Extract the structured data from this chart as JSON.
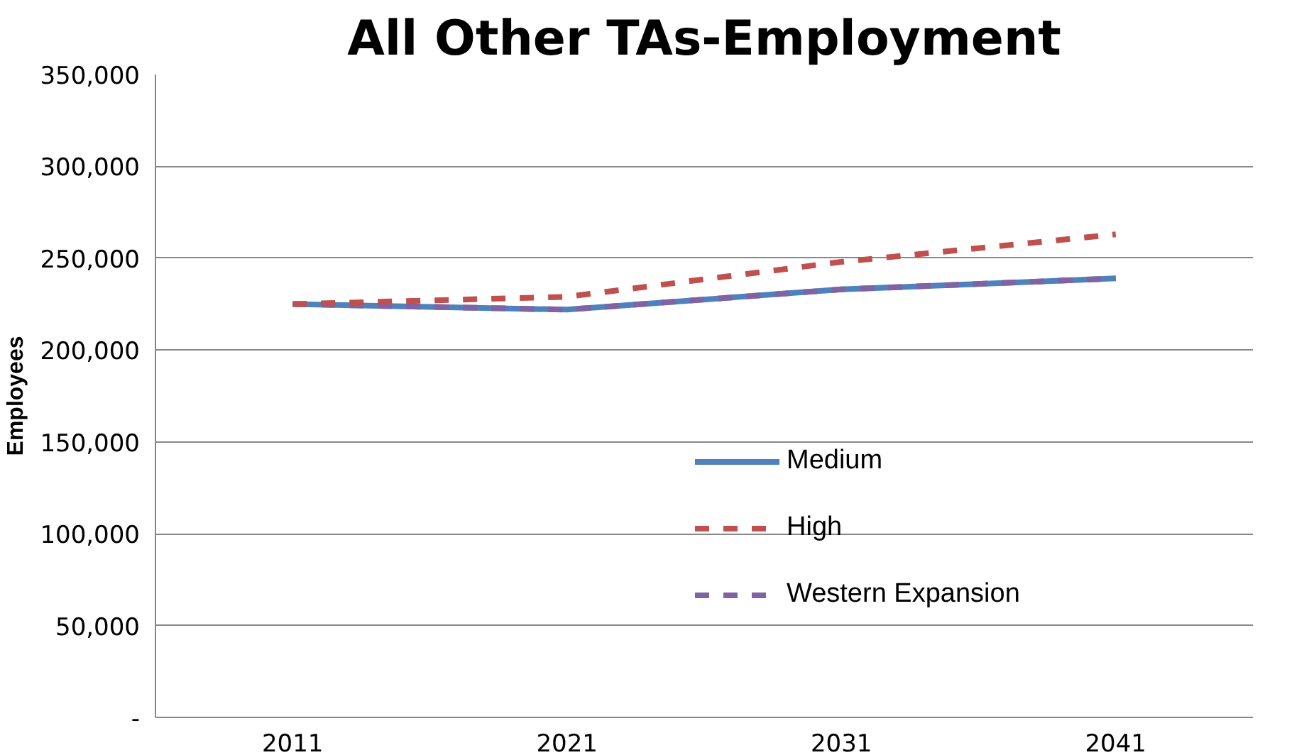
{
  "chart_data": {
    "type": "line",
    "title": "All Other TAs-Employment",
    "ylabel": "Employees",
    "categories": [
      "2011",
      "2021",
      "2031",
      "2041"
    ],
    "series": [
      {
        "name": "Medium",
        "color": "#4f81bd",
        "values": [
          225000,
          222000,
          233000,
          239000
        ],
        "line_style": "solid"
      },
      {
        "name": "High",
        "color": "#c0504d",
        "values": [
          225000,
          229000,
          248000,
          263000
        ],
        "line_style": "dashed"
      },
      {
        "name": "Western Expansion",
        "color": "#8064a2",
        "values": [
          225000,
          222000,
          233000,
          239000
        ],
        "line_style": "dashed"
      }
    ],
    "ylim": [
      0,
      350000
    ],
    "yticks": [
      {
        "value": 0,
        "label": "-"
      },
      {
        "value": 50000,
        "label": "50,000"
      },
      {
        "value": 100000,
        "label": "100,000"
      },
      {
        "value": 150000,
        "label": "150,000"
      },
      {
        "value": 200000,
        "label": "200,000"
      },
      {
        "value": 250000,
        "label": "250,000"
      },
      {
        "value": 300000,
        "label": "300,000"
      },
      {
        "value": 350000,
        "label": "350,000"
      }
    ],
    "grid": "y",
    "legend": "right",
    "marker": "none"
  }
}
